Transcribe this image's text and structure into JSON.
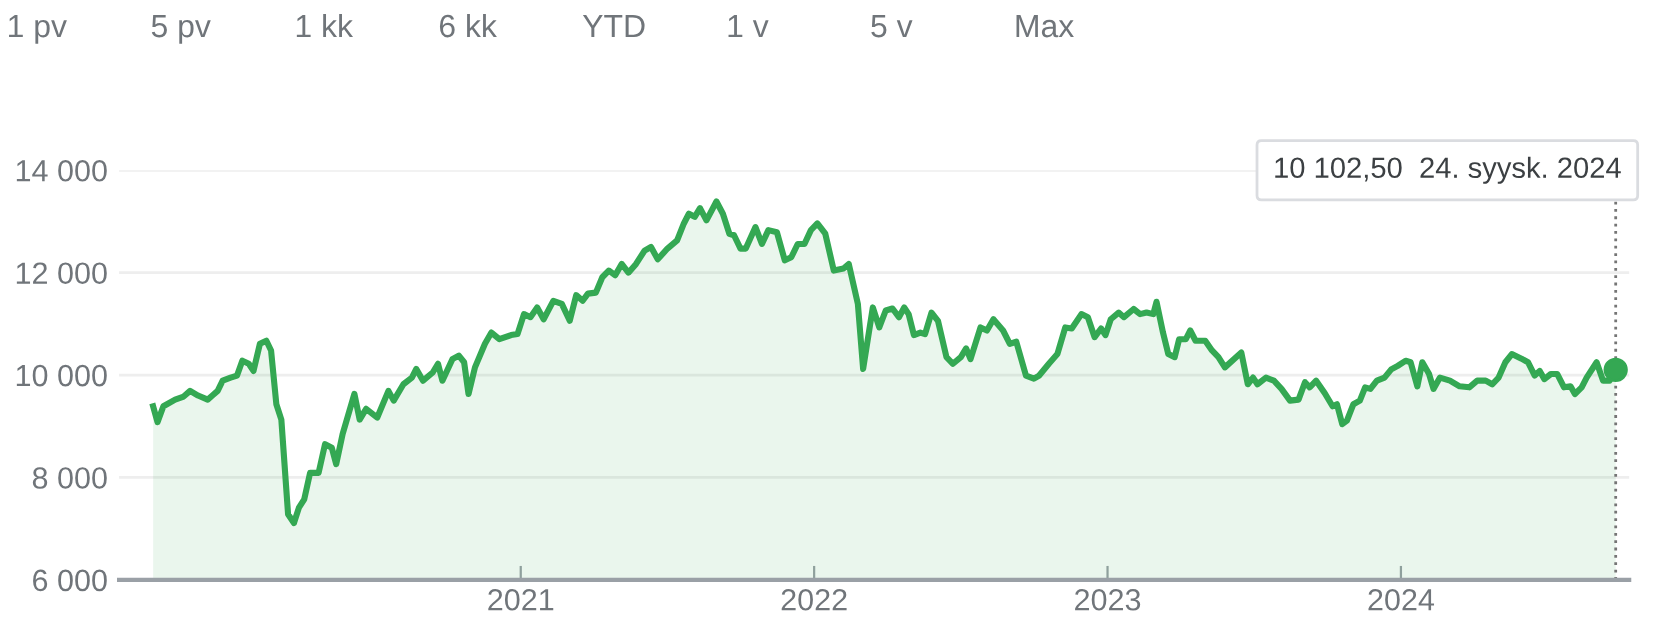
{
  "chart_data": {
    "type": "area",
    "x": [
      2019.747,
      2019.762,
      2019.782,
      2019.822,
      2019.851,
      2019.873,
      2019.9,
      2019.933,
      2019.949,
      2019.967,
      2019.984,
      2020.011,
      2020.033,
      2020.051,
      2020.073,
      2020.089,
      2020.111,
      2020.133,
      2020.149,
      2020.167,
      2020.184,
      2020.207,
      2020.227,
      2020.244,
      2020.262,
      2020.282,
      2020.311,
      2020.333,
      2020.356,
      2020.371,
      2020.393,
      2020.433,
      2020.451,
      2020.473,
      2020.511,
      2020.549,
      2020.567,
      2020.6,
      2020.629,
      2020.644,
      2020.667,
      2020.7,
      2020.718,
      2020.733,
      2020.767,
      2020.789,
      2020.807,
      2020.822,
      2020.844,
      2020.878,
      2020.9,
      2020.927,
      2020.967,
      2020.989,
      2021.011,
      2021.033,
      2021.056,
      2021.078,
      2021.111,
      2021.14,
      2021.167,
      2021.189,
      2021.211,
      2021.229,
      2021.256,
      2021.278,
      2021.3,
      2021.322,
      2021.344,
      2021.367,
      2021.393,
      2021.422,
      2021.444,
      2021.467,
      2021.5,
      2021.533,
      2021.556,
      2021.573,
      2021.593,
      2021.611,
      2021.633,
      2021.667,
      2021.689,
      2021.711,
      2021.727,
      2021.749,
      2021.767,
      2021.8,
      2021.822,
      2021.844,
      2021.873,
      2021.9,
      2021.922,
      2021.944,
      2021.967,
      2021.989,
      2022.011,
      2022.038,
      2022.067,
      2022.1,
      2022.118,
      2022.149,
      2022.167,
      2022.2,
      2022.222,
      2022.244,
      2022.267,
      2022.289,
      2022.307,
      2022.322,
      2022.34,
      2022.362,
      2022.378,
      2022.4,
      2022.422,
      2022.451,
      2022.473,
      2022.5,
      2022.518,
      2022.533,
      2022.567,
      2022.589,
      2022.611,
      2022.644,
      2022.667,
      2022.689,
      2022.722,
      2022.749,
      2022.767,
      2022.8,
      2022.829,
      2022.856,
      2022.878,
      2022.911,
      2022.933,
      2022.956,
      2022.978,
      2022.993,
      2023.011,
      2023.038,
      2023.056,
      2023.089,
      2023.111,
      2023.133,
      2023.156,
      2023.167,
      2023.189,
      2023.207,
      2023.229,
      2023.244,
      2023.267,
      2023.282,
      2023.3,
      2023.333,
      2023.356,
      2023.378,
      2023.4,
      2023.456,
      2023.478,
      2023.496,
      2023.511,
      2023.54,
      2023.567,
      2023.593,
      2023.622,
      2023.651,
      2023.673,
      2023.689,
      2023.711,
      2023.74,
      2023.767,
      2023.782,
      2023.8,
      2023.816,
      2023.838,
      2023.86,
      2023.878,
      2023.896,
      2023.918,
      2023.944,
      2023.967,
      2023.989,
      2024.016,
      2024.033,
      2024.056,
      2024.073,
      2024.096,
      2024.111,
      2024.133,
      2024.167,
      2024.2,
      2024.233,
      2024.26,
      2024.289,
      2024.311,
      2024.333,
      2024.356,
      2024.378,
      2024.411,
      2024.433,
      2024.456,
      2024.473,
      2024.489,
      2024.511,
      2024.533,
      2024.556,
      2024.578,
      2024.593,
      2024.616,
      2024.633,
      2024.667,
      2024.689,
      2024.711,
      2024.732
    ],
    "series": [
      {
        "color": "#34a853",
        "values": [
          9390,
          9080,
          9390,
          9520,
          9580,
          9690,
          9600,
          9520,
          9600,
          9690,
          9890,
          9950,
          9990,
          10280,
          10220,
          10080,
          10610,
          10670,
          10480,
          9430,
          9130,
          7280,
          7110,
          7410,
          7570,
          8090,
          8090,
          8650,
          8580,
          8260,
          8850,
          9630,
          9130,
          9340,
          9170,
          9690,
          9500,
          9820,
          9950,
          10120,
          9890,
          10050,
          10220,
          9890,
          10310,
          10380,
          10250,
          9630,
          10150,
          10610,
          10830,
          10700,
          10780,
          10800,
          11190,
          11130,
          11320,
          11090,
          11450,
          11390,
          11060,
          11560,
          11450,
          11590,
          11610,
          11910,
          12040,
          11950,
          12170,
          12000,
          12170,
          12430,
          12500,
          12260,
          12470,
          12630,
          12960,
          13150,
          13090,
          13260,
          13020,
          13390,
          13150,
          12760,
          12730,
          12470,
          12470,
          12890,
          12560,
          12830,
          12790,
          12240,
          12300,
          12560,
          12560,
          12830,
          12960,
          12760,
          12040,
          12080,
          12170,
          11390,
          10120,
          11320,
          10930,
          11260,
          11300,
          11130,
          11320,
          11190,
          10780,
          10830,
          10800,
          11220,
          11060,
          10350,
          10220,
          10350,
          10520,
          10310,
          10930,
          10870,
          11090,
          10870,
          10610,
          10650,
          9990,
          9930,
          9990,
          10220,
          10410,
          10930,
          10910,
          11190,
          11130,
          10740,
          10910,
          10780,
          11090,
          11220,
          11130,
          11290,
          11190,
          11220,
          11190,
          11430,
          10830,
          10410,
          10350,
          10700,
          10700,
          10870,
          10670,
          10670,
          10480,
          10350,
          10150,
          10440,
          9820,
          9950,
          9820,
          9950,
          9890,
          9730,
          9500,
          9520,
          9860,
          9760,
          9890,
          9650,
          9390,
          9430,
          9040,
          9110,
          9430,
          9500,
          9760,
          9730,
          9890,
          9950,
          10110,
          10180,
          10280,
          10250,
          9780,
          10250,
          10020,
          9730,
          9950,
          9890,
          9780,
          9760,
          9890,
          9890,
          9820,
          9950,
          10250,
          10410,
          10320,
          10250,
          9990,
          10080,
          9920,
          10020,
          10020,
          9760,
          9780,
          9630,
          9760,
          9950,
          10250,
          9890,
          9890,
          10102.5
        ]
      },
      {
        "type": "scatter",
        "color": "#34a853",
        "marker": "circle",
        "x": [
          2024.732
        ],
        "values": [
          10102.5
        ]
      }
    ],
    "xlim": [
      2019.631,
      2024.778
    ],
    "ylim": [
      6000,
      14000
    ],
    "xticks": [
      2021,
      2022,
      2023,
      2024
    ],
    "yticks": [
      {
        "value": 6000,
        "label": "6 000"
      },
      {
        "value": 8000,
        "label": "8 000"
      },
      {
        "value": 10000,
        "label": "10 000"
      },
      {
        "value": 12000,
        "label": "12 000"
      },
      {
        "value": 14000,
        "label": "14 000"
      }
    ],
    "grid": "y",
    "ref_lines": [
      {
        "axis": "x",
        "value": 2024.732,
        "color": "#757575",
        "line_style": "dotted"
      }
    ],
    "annotations": [
      "1 pv",
      "5 pv",
      "1 kk",
      "6 kk",
      "YTD",
      "1 v",
      "5 v",
      "Max",
      "10 102,50  24. syysk. 2024"
    ]
  }
}
